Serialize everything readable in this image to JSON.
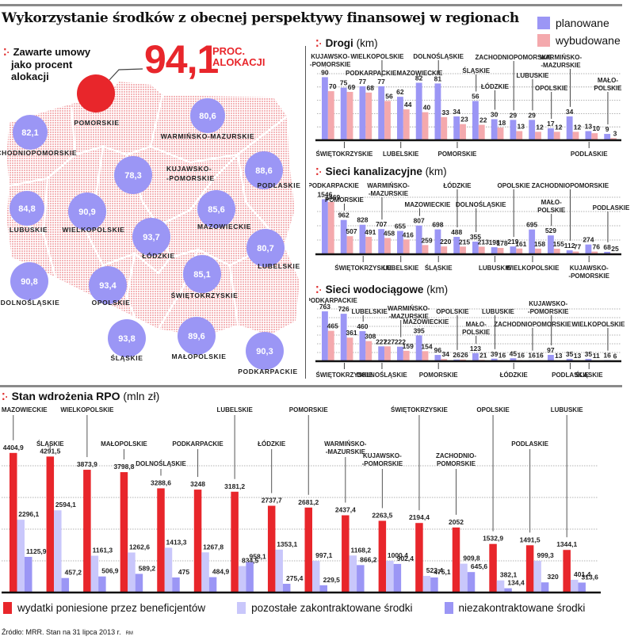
{
  "title": "Wykorzystanie środków z obecnej perspektywy finansowej w regionach",
  "colors": {
    "planned": "#9b96f5",
    "built": "#f4a9ad",
    "spent": "#e8262b",
    "contracted_other": "#c9c7fb",
    "uncontracted": "#9b96f5",
    "highlight": "#e8262b",
    "map_fill": "#f7c6c8"
  },
  "legend_top": [
    {
      "key": "planned",
      "label": "planowane"
    },
    {
      "key": "built",
      "label": "wybudowane"
    }
  ],
  "map": {
    "lead": [
      "Zawarte umowy",
      "jako procent",
      "alokacji"
    ],
    "total_value": "94,1",
    "total_unit": [
      "PROC.",
      "ALOKACJI"
    ],
    "regions": [
      {
        "name": "POMORSKIE",
        "value": null,
        "highlight": true
      },
      {
        "name": "ZACHODNIOPOMORSKIE",
        "value": "82,1"
      },
      {
        "name": "WARMIŃSKO-MAZURSKIE",
        "value": "80,6"
      },
      {
        "name": "KUJAWSKO-\n-POMORSKIE",
        "value": "78,3"
      },
      {
        "name": "PODLASKIE",
        "value": "88,6"
      },
      {
        "name": "LUBUSKIE",
        "value": "84,8"
      },
      {
        "name": "WIELKOPOLSKIE",
        "value": "90,9"
      },
      {
        "name": "MAZOWIECKIE",
        "value": "85,6"
      },
      {
        "name": "ŁÓDZKIE",
        "value": "93,7"
      },
      {
        "name": "LUBELSKIE",
        "value": "80,7"
      },
      {
        "name": "DOLNOŚLĄSKIE",
        "value": "90,8"
      },
      {
        "name": "OPOLSKIE",
        "value": "93,4"
      },
      {
        "name": "ŚWIĘTOKRZYSKIE",
        "value": "85,1"
      },
      {
        "name": "ŚLĄSKIE",
        "value": "93,8"
      },
      {
        "name": "MAŁOPOLSKIE",
        "value": "89,6"
      },
      {
        "name": "PODKARPACKIE",
        "value": "90,3"
      }
    ]
  },
  "chart_data": [
    {
      "type": "bar",
      "title": "Drogi",
      "unit": "(km)",
      "series_names": [
        "planowane",
        "wybudowane"
      ],
      "categories": [
        "KUJAWSKO-POMORSKIE",
        "ŚWIĘTOKRZYSKIE",
        "PODKARPACKIE",
        "WIELKOPOLSKIE",
        "LUBELSKIE",
        "MAZOWIECKIE",
        "DOLNOŚLĄSKIE",
        "POMORSKIE",
        "ŚLĄSKIE",
        "ŁÓDZKIE",
        "ZACHODNIOPOMORSKIE",
        "LUBUSKIE",
        "OPOLSKIE",
        "WARMIŃSKO-MAZURSKIE",
        "PODLASKIE",
        "MAŁOPOLSKIE"
      ],
      "series": [
        {
          "name": "planowane",
          "values": [
            90,
            75,
            77,
            77,
            62,
            82,
            81,
            34,
            56,
            30,
            29,
            29,
            17,
            34,
            13,
            9
          ]
        },
        {
          "name": "wybudowane",
          "values": [
            70,
            69,
            68,
            56,
            44,
            40,
            33,
            23,
            22,
            18,
            13,
            12,
            12,
            12,
            10,
            3
          ]
        }
      ],
      "ylim": [
        0,
        95
      ],
      "grid": true
    },
    {
      "type": "bar",
      "title": "Sieci kanalizacyjne",
      "unit": "(km)",
      "series_names": [
        "planowane",
        "wybudowane"
      ],
      "categories": [
        "PODKARPACKIE",
        "POMORSKIE",
        "ŚWIĘTOKRZYSKIE",
        "WARMIŃSKO-MAZURSKIE",
        "LUBELSKIE",
        "MAZOWIECKIE",
        "ŚLĄSKIE",
        "ŁÓDZKIE",
        "DOLNOŚLĄSKIE",
        "LUBUSKIE",
        "OPOLSKIE",
        "WIELKOPOLSKIE",
        "MAŁOPOLSKIE",
        "ZACHODNIOPOMORSKIE",
        "KUJAWSKO-POMORSKIE",
        "PODLASKIE"
      ],
      "series": [
        {
          "name": "planowane",
          "values": [
            1546,
            962,
            828,
            707,
            655,
            807,
            698,
            488,
            355,
            198,
            219,
            695,
            529,
            112,
            274,
            68
          ]
        },
        {
          "name": "wybudowane",
          "values": [
            1469,
            507,
            491,
            458,
            416,
            259,
            220,
            215,
            213,
            178,
            161,
            158,
            155,
            77,
            76,
            25
          ]
        }
      ],
      "ylim": [
        0,
        1600
      ],
      "grid": true
    },
    {
      "type": "bar",
      "title": "Sieci wodociągowe",
      "unit": "(km)",
      "series_names": [
        "planowane",
        "wybudowane"
      ],
      "categories": [
        "PODKARPACKIE",
        "ŚWIĘTOKRZYSKIE",
        "LUBELSKIE",
        "DOLNOŚLĄSKIE",
        "WARMIŃSKO-MAZURSKIE",
        "MAZOWIECKIE",
        "POMORSKIE",
        "OPOLSKIE",
        "MAŁOPOLSKIE",
        "LUBUSKIE",
        "ŁÓDZKIE",
        "ZACHODNIOPOMORSKIE",
        "KUJAWSKO-POMORSKIE",
        "PODLASKIE",
        "ŚLĄSKIE",
        "WIELKOPOLSKIE"
      ],
      "series": [
        {
          "name": "planowane",
          "values": [
            763,
            726,
            460,
            227,
            222,
            395,
            96,
            26,
            123,
            39,
            45,
            16,
            97,
            35,
            35,
            16
          ]
        },
        {
          "name": "wybudowane",
          "values": [
            465,
            361,
            308,
            227,
            159,
            154,
            34,
            26,
            21,
            16,
            16,
            16,
            13,
            13,
            11,
            6
          ]
        }
      ],
      "ylim": [
        0,
        800
      ],
      "grid": true
    },
    {
      "type": "bar",
      "title": "Stan wdrożenia RPO",
      "unit": "(mln zł)",
      "categories": [
        "MAZOWIECKIE",
        "ŚLĄSKIE",
        "WIELKOPOLSKIE",
        "MAŁOPOLSKIE",
        "DOLNOŚLĄSKIE",
        "PODKARPACKIE",
        "LUBELSKIE",
        "ŁÓDZKIE",
        "POMORSKIE",
        "WARMIŃSKO-MAZURSKIE",
        "KUJAWSKO-POMORSKIE",
        "ŚWIĘTOKRZYSKIE",
        "ZACHODNIOPOMORSKIE",
        "OPOLSKIE",
        "PODLASKIE",
        "LUBUSKIE"
      ],
      "series": [
        {
          "name": "wydatki poniesione przez beneficjentów",
          "values": [
            4404.9,
            4291.5,
            3873.9,
            3798.8,
            3288.6,
            3248,
            3181.2,
            2737.7,
            2681.2,
            2437.4,
            2263.5,
            2194.4,
            2052,
            1532.9,
            1491.5,
            1344.1
          ]
        },
        {
          "name": "pozostałe zakontraktowane środki",
          "values": [
            2296.1,
            2594.1,
            1161.3,
            1262.6,
            1413.3,
            1267.8,
            834.5,
            1353.1,
            997.1,
            1168.2,
            1000.4,
            523.4,
            909.8,
            382.1,
            999.3,
            401.4
          ]
        },
        {
          "name": "niezakontraktowane środki",
          "values": [
            1125.9,
            457.2,
            506.9,
            589.2,
            475,
            484.9,
            958.1,
            275.4,
            229.5,
            866.2,
            902.4,
            475.1,
            645.6,
            134.4,
            320,
            313.6
          ]
        }
      ],
      "labels": [
        [
          "4404,9",
          "2296,1",
          "1125,9"
        ],
        [
          "4291,5",
          "2594,1",
          "457,2"
        ],
        [
          "3873,9",
          "1161,3",
          "506,9"
        ],
        [
          "3798,8",
          "1262,6",
          "589,2"
        ],
        [
          "3288,6",
          "1413,3",
          "475"
        ],
        [
          "3248",
          "1267,8",
          "484,9"
        ],
        [
          "3181,2",
          "834,5",
          "958,1"
        ],
        [
          "2737,7",
          "1353,1",
          "275,4"
        ],
        [
          "2681,2",
          "997,1",
          "229,5"
        ],
        [
          "2437,4",
          "1168,2",
          "866,2"
        ],
        [
          "2263,5",
          "1000,4",
          "902,4"
        ],
        [
          "2194,4",
          "523,4",
          "475,1"
        ],
        [
          "2052",
          "909,8",
          "645,6"
        ],
        [
          "1532,9",
          "382,1",
          "134,4"
        ],
        [
          "1491,5",
          "999,3",
          "320"
        ],
        [
          "1344,1",
          "401,4",
          "313,6"
        ]
      ],
      "ylim": [
        0,
        5000
      ],
      "grid": true
    }
  ],
  "legend_bottom": [
    {
      "key": "spent",
      "label": "wydatki poniesione przez beneficjentów"
    },
    {
      "key": "contracted_other",
      "label": "pozostałe zakontraktowane środki"
    },
    {
      "key": "uncontracted",
      "label": "niezakontraktowane środki"
    }
  ],
  "source": "Źródło: MRR. Stan na 31 lipca 2013 r.",
  "author": "RM"
}
